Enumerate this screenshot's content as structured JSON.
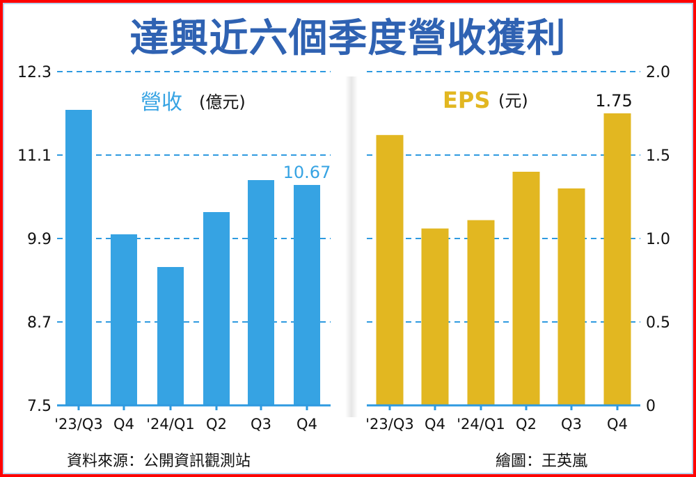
{
  "title": "達興近六個季度營收獲利",
  "source": "資料來源：公開資訊觀測站",
  "credit": "繪圖：王英嵐",
  "colors": {
    "revenue": "#36a3e3",
    "eps": "#e2b721",
    "grid": "#2e9ae0",
    "title": "#2f62b2"
  },
  "chart_data": [
    {
      "type": "bar",
      "title": "營收",
      "unit": "(億元)",
      "categories": [
        "'23/Q3",
        "Q4",
        "'24/Q1",
        "Q2",
        "Q3",
        "Q4"
      ],
      "values": [
        11.75,
        9.96,
        9.49,
        10.28,
        10.74,
        10.67
      ],
      "data_labels": [
        {
          "index": 5,
          "text": "10.67"
        }
      ],
      "ylim": [
        7.5,
        12.3
      ],
      "yticks": [
        "12.3",
        "11.1",
        "9.9",
        "8.7",
        "7.5"
      ],
      "ytick_values": [
        12.3,
        11.1,
        9.9,
        8.7,
        7.5
      ],
      "yaxis_side": "left",
      "grid": true
    },
    {
      "type": "bar",
      "title": "EPS",
      "unit": "(元)",
      "categories": [
        "'23/Q3",
        "Q4",
        "'24/Q1",
        "Q2",
        "Q3",
        "Q4"
      ],
      "values": [
        1.62,
        1.06,
        1.11,
        1.4,
        1.3,
        1.75
      ],
      "data_labels": [
        {
          "index": 5,
          "text": "1.75"
        }
      ],
      "ylim": [
        0,
        2.0
      ],
      "yticks": [
        "2.0",
        "1.5",
        "1.0",
        "0.5",
        "0"
      ],
      "ytick_values": [
        2.0,
        1.5,
        1.0,
        0.5,
        0
      ],
      "yaxis_side": "right",
      "grid": true
    }
  ]
}
